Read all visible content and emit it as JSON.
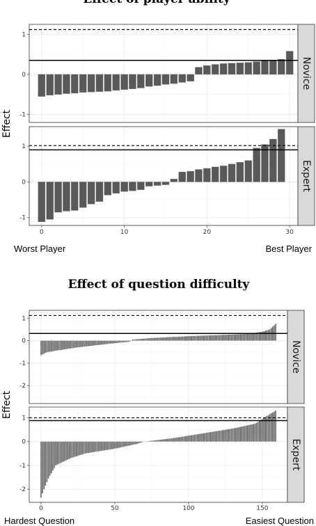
{
  "chart_data": [
    {
      "type": "bar",
      "title": "Effect of player ability",
      "ylabel": "Effect",
      "x_start_label": "Worst Player",
      "x_end_label": "Best Player",
      "x_ticks": [
        0,
        10,
        20,
        30
      ],
      "xlim": [
        -1.5,
        31
      ],
      "panels": [
        {
          "name": "Novice",
          "ylim": [
            -1.2,
            1.25
          ],
          "y_ticks": [
            -1,
            0,
            1
          ],
          "solid_line": 0.35,
          "dashed_line": 1.12,
          "values": [
            -0.55,
            -0.52,
            -0.5,
            -0.48,
            -0.47,
            -0.45,
            -0.44,
            -0.43,
            -0.42,
            -0.4,
            -0.38,
            -0.36,
            -0.34,
            -0.3,
            -0.28,
            -0.25,
            -0.23,
            -0.2,
            -0.17,
            0.18,
            0.22,
            0.25,
            0.27,
            0.28,
            0.29,
            0.3,
            0.32,
            0.35,
            0.36,
            0.38,
            0.58
          ]
        },
        {
          "name": "Expert",
          "ylim": [
            -1.22,
            1.55
          ],
          "y_ticks": [
            -1,
            0,
            1
          ],
          "solid_line": 0.9,
          "dashed_line": 1.02,
          "values": [
            -1.12,
            -1.05,
            -0.85,
            -0.82,
            -0.8,
            -0.72,
            -0.62,
            -0.55,
            -0.37,
            -0.32,
            -0.27,
            -0.25,
            -0.22,
            -0.12,
            -0.1,
            -0.08,
            0.08,
            0.28,
            0.3,
            0.35,
            0.38,
            0.42,
            0.45,
            0.5,
            0.55,
            0.6,
            0.95,
            1.05,
            1.2,
            1.48
          ]
        }
      ]
    },
    {
      "type": "bar",
      "title": "Effect of question difficulty",
      "ylabel": "Effect",
      "x_start_label": "Hardest Question",
      "x_end_label": "Easiest Question",
      "x_ticks": [
        0,
        50,
        100,
        150
      ],
      "xlim": [
        -8,
        167
      ],
      "n_questions": 160,
      "panels": [
        {
          "name": "Novice",
          "ylim": [
            -2.8,
            1.35
          ],
          "y_ticks": [
            -2,
            -1,
            0,
            1
          ],
          "solid_line": 0.32,
          "dashed_line": 1.12,
          "profile": [
            [
              0,
              -0.65
            ],
            [
              4,
              -0.52
            ],
            [
              10,
              -0.45
            ],
            [
              25,
              -0.3
            ],
            [
              45,
              -0.15
            ],
            [
              60,
              -0.05
            ],
            [
              62,
              0.05
            ],
            [
              75,
              0.12
            ],
            [
              100,
              0.2
            ],
            [
              120,
              0.25
            ],
            [
              140,
              0.3
            ],
            [
              150,
              0.4
            ],
            [
              155,
              0.5
            ],
            [
              159,
              0.75
            ]
          ]
        },
        {
          "name": "Expert",
          "ylim": [
            -2.55,
            1.45
          ],
          "y_ticks": [
            -2,
            -1,
            0,
            1
          ],
          "solid_line": 0.88,
          "dashed_line": 1.0,
          "profile": [
            [
              0,
              -2.35
            ],
            [
              2,
              -2.0
            ],
            [
              5,
              -1.55
            ],
            [
              10,
              -1.0
            ],
            [
              20,
              -0.7
            ],
            [
              30,
              -0.5
            ],
            [
              50,
              -0.3
            ],
            [
              65,
              -0.1
            ],
            [
              70,
              0.0
            ],
            [
              90,
              0.15
            ],
            [
              110,
              0.35
            ],
            [
              130,
              0.55
            ],
            [
              145,
              0.75
            ],
            [
              150,
              0.95
            ],
            [
              155,
              1.15
            ],
            [
              159,
              1.3
            ]
          ]
        }
      ]
    }
  ]
}
